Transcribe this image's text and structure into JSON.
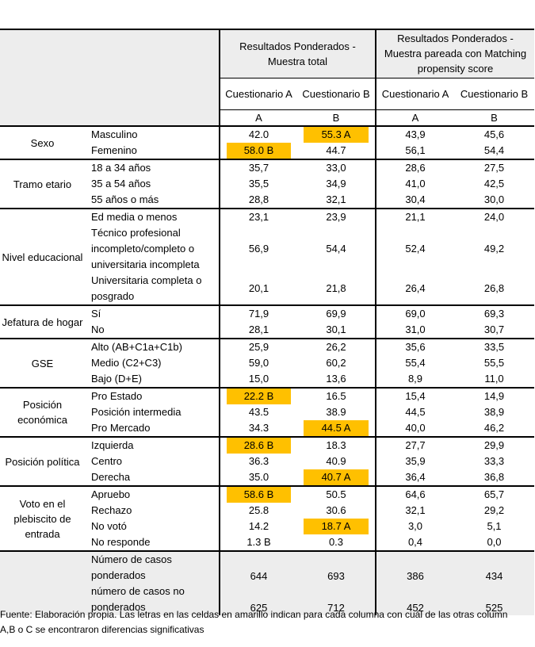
{
  "header": {
    "group1": "Resultados Ponderados - Muestra total",
    "group2": "Resultados Ponderados - Muestra pareada con Matching propensity score",
    "col_names": [
      "Cuestionario A",
      "Cuestionario B",
      "Cuestionario A",
      "Cuestionario B"
    ],
    "col_letters": [
      "A",
      "B",
      "A",
      "B"
    ]
  },
  "groups": [
    {
      "label": "Sexo",
      "rows": [
        {
          "label": "Masculino",
          "values": [
            "42.0",
            "55.3 A",
            "43,9",
            "45,6"
          ],
          "highlight": [
            false,
            true,
            false,
            false
          ]
        },
        {
          "label": "Femenino",
          "values": [
            "58.0 B",
            "44.7",
            "56,1",
            "54,4"
          ],
          "highlight": [
            true,
            false,
            false,
            false
          ]
        }
      ]
    },
    {
      "label": "Tramo etario",
      "rows": [
        {
          "label": "18 a 34 años",
          "values": [
            "35,7",
            "33,0",
            "28,6",
            "27,5"
          ],
          "highlight": [
            false,
            false,
            false,
            false
          ]
        },
        {
          "label": "35 a 54 años",
          "values": [
            "35,5",
            "34,9",
            "41,0",
            "42,5"
          ],
          "highlight": [
            false,
            false,
            false,
            false
          ]
        },
        {
          "label": "55 años o más",
          "values": [
            "28,8",
            "32,1",
            "30,4",
            "30,0"
          ],
          "highlight": [
            false,
            false,
            false,
            false
          ]
        }
      ]
    },
    {
      "label": "Nivel educacional",
      "rows": [
        {
          "label": "Ed media o menos",
          "values": [
            "23,1",
            "23,9",
            "21,1",
            "24,0"
          ],
          "highlight": [
            false,
            false,
            false,
            false
          ]
        },
        {
          "label": "Técnico profesional incompleto/completo o universitaria incompleta",
          "values": [
            "56,9",
            "54,4",
            "52,4",
            "49,2"
          ],
          "highlight": [
            false,
            false,
            false,
            false
          ]
        },
        {
          "label": "Universitaria completa o posgrado",
          "values": [
            "20,1",
            "21,8",
            "26,4",
            "26,8"
          ],
          "highlight": [
            false,
            false,
            false,
            false
          ]
        }
      ]
    },
    {
      "label": "Jefatura de hogar",
      "rows": [
        {
          "label": "Sí",
          "values": [
            "71,9",
            "69,9",
            "69,0",
            "69,3"
          ],
          "highlight": [
            false,
            false,
            false,
            false
          ]
        },
        {
          "label": "No",
          "values": [
            "28,1",
            "30,1",
            "31,0",
            "30,7"
          ],
          "highlight": [
            false,
            false,
            false,
            false
          ]
        }
      ]
    },
    {
      "label": "GSE",
      "rows": [
        {
          "label": "Alto (AB+C1a+C1b)",
          "values": [
            "25,9",
            "26,2",
            "35,6",
            "33,5"
          ],
          "highlight": [
            false,
            false,
            false,
            false
          ]
        },
        {
          "label": "Medio (C2+C3)",
          "values": [
            "59,0",
            "60,2",
            "55,4",
            "55,5"
          ],
          "highlight": [
            false,
            false,
            false,
            false
          ]
        },
        {
          "label": "Bajo (D+E)",
          "values": [
            "15,0",
            "13,6",
            "8,9",
            "11,0"
          ],
          "highlight": [
            false,
            false,
            false,
            false
          ]
        }
      ]
    },
    {
      "label": "Posición económica",
      "rows": [
        {
          "label": "Pro Estado",
          "values": [
            "22.2 B",
            "16.5",
            "15,4",
            "14,9"
          ],
          "highlight": [
            true,
            false,
            false,
            false
          ]
        },
        {
          "label": "Posición intermedia",
          "values": [
            "43.5",
            "38.9",
            "44,5",
            "38,9"
          ],
          "highlight": [
            false,
            false,
            false,
            false
          ]
        },
        {
          "label": "Pro Mercado",
          "values": [
            "34.3",
            "44.5 A",
            "40,0",
            "46,2"
          ],
          "highlight": [
            false,
            true,
            false,
            false
          ]
        }
      ]
    },
    {
      "label": "Posición política",
      "rows": [
        {
          "label": "Izquierda",
          "values": [
            "28.6 B",
            "18.3",
            "27,7",
            "29,9"
          ],
          "highlight": [
            true,
            false,
            false,
            false
          ]
        },
        {
          "label": "Centro",
          "values": [
            "36.3",
            "40.9",
            "35,9",
            "33,3"
          ],
          "highlight": [
            false,
            false,
            false,
            false
          ]
        },
        {
          "label": "Derecha",
          "values": [
            "35.0",
            "40.7 A",
            "36,4",
            "36,8"
          ],
          "highlight": [
            false,
            true,
            false,
            false
          ]
        }
      ]
    },
    {
      "label": "Voto en el plebiscito de entrada",
      "rows": [
        {
          "label": "Apruebo",
          "values": [
            "58.6 B",
            "50.5",
            "64,6",
            "65,7"
          ],
          "highlight": [
            true,
            false,
            false,
            false
          ]
        },
        {
          "label": "Rechazo",
          "values": [
            "25.8",
            "30.6",
            "32,1",
            "29,2"
          ],
          "highlight": [
            false,
            false,
            false,
            false
          ]
        },
        {
          "label": "No votó",
          "values": [
            "14.2",
            "18.7 A",
            "3,0",
            "5,1"
          ],
          "highlight": [
            false,
            true,
            false,
            false
          ]
        },
        {
          "label": "No responde",
          "values": [
            "1.3 B",
            "0.3",
            "0,4",
            "0,0"
          ],
          "highlight": [
            false,
            false,
            false,
            false
          ]
        }
      ]
    }
  ],
  "totals": [
    {
      "label": "Número de casos ponderados",
      "values": [
        "644",
        "693",
        "386",
        "434"
      ]
    },
    {
      "label": "número de casos no ponderados",
      "values": [
        "625",
        "712",
        "452",
        "525"
      ]
    }
  ],
  "footer": "Fuente: Elaboración propia. Las letras en las celdas en amarillo indican para cada columna con cuál de las otras column A,B o C se encontraron diferencias significativas",
  "colors": {
    "highlight": "#ffc000",
    "header_bg": "#ededed"
  }
}
